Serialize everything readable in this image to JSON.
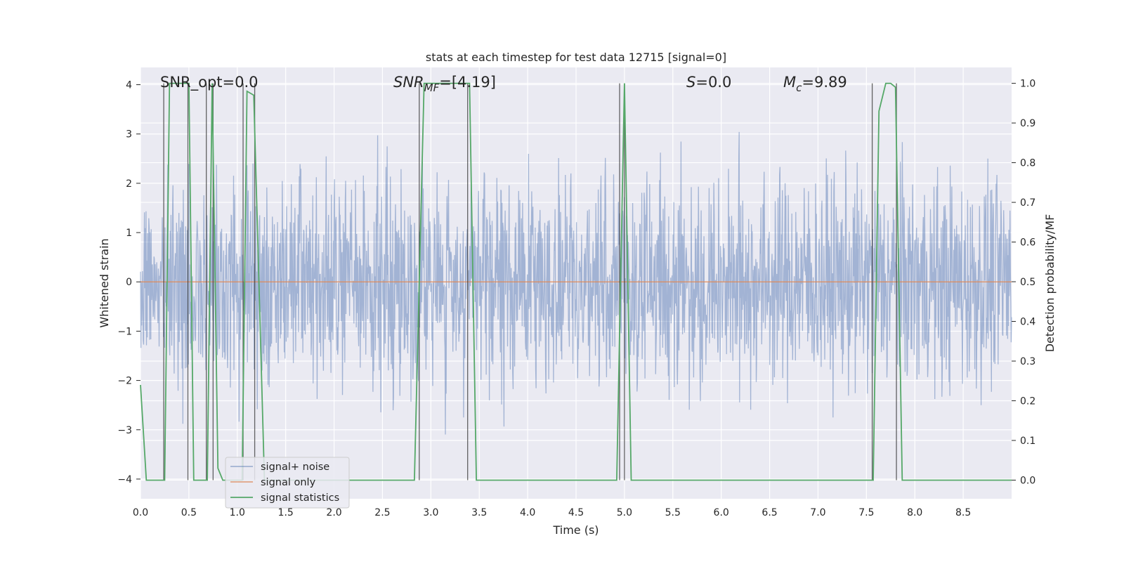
{
  "chart_data": {
    "type": "line",
    "title": "stats at each timestep for test data 12715 [signal=0]",
    "xlabel": "Time (s)",
    "ylabel": "Whitened strain",
    "y2label": "Detection probability/MF",
    "xlim": [
      0,
      9
    ],
    "ylim": [
      -4.4,
      4.35
    ],
    "y2lim": [
      -0.047,
      1.04
    ],
    "x_ticks": [
      "0.0",
      "0.5",
      "1.0",
      "1.5",
      "2.0",
      "2.5",
      "3.0",
      "3.5",
      "4.0",
      "4.5",
      "5.0",
      "5.5",
      "6.0",
      "6.5",
      "7.0",
      "7.5",
      "8.0",
      "8.5"
    ],
    "y_ticks": [
      "−4",
      "−3",
      "−2",
      "−1",
      "0",
      "1",
      "2",
      "3",
      "4"
    ],
    "y2_ticks": [
      "0.0",
      "0.1",
      "0.2",
      "0.3",
      "0.4",
      "0.5",
      "0.6",
      "0.7",
      "0.8",
      "0.9",
      "1.0"
    ],
    "annotations": {
      "snr_opt": "SNR_opt=0.0",
      "snr_mf_base": "SNR",
      "snr_mf_sub": "MF",
      "snr_mf_rest": "=[4.19]",
      "s_base": "S",
      "s_rest": "=0.0",
      "mc_base": "M",
      "mc_sub": "c",
      "mc_rest": "=9.89"
    },
    "legend": [
      "signal+ noise",
      "signal only",
      "signal statistics"
    ],
    "legend_position": "lower-left",
    "series": [
      {
        "name": "signal+ noise",
        "color": "#4c72b0",
        "axis": "left",
        "description": "whitened strain noise, amplitude range approx -3.8 to 4.0"
      },
      {
        "name": "signal only",
        "color": "#dd8452",
        "axis": "left",
        "values_constant": 0
      },
      {
        "name": "signal statistics",
        "color": "#55a868",
        "axis": "right",
        "x": [
          0.0,
          0.06,
          0.25,
          0.3,
          0.5,
          0.55,
          0.69,
          0.74,
          0.8,
          0.85,
          1.05,
          1.1,
          1.17,
          1.28,
          1.35,
          2.83,
          2.93,
          3.4,
          3.47,
          4.92,
          5.0,
          5.07,
          7.57,
          7.63,
          7.7,
          7.75,
          7.8,
          7.87,
          9.0
        ],
        "values": [
          0.24,
          0.0,
          0.0,
          1.0,
          1.0,
          0.0,
          0.0,
          1.0,
          0.03,
          0.0,
          0.0,
          0.98,
          0.97,
          0.0,
          0.0,
          0.0,
          1.0,
          1.0,
          0.0,
          0.0,
          1.0,
          0.0,
          0.0,
          0.93,
          1.0,
          1.0,
          0.99,
          0.0,
          0.0
        ]
      }
    ],
    "vertical_markers": [
      0.24,
      0.49,
      0.68,
      0.75,
      1.06,
      1.18,
      2.88,
      3.38,
      4.95,
      5.0,
      7.56,
      7.81
    ],
    "colors": {
      "background": "#eaeaf2",
      "grid": "#ffffff",
      "marker": "#333333"
    }
  }
}
